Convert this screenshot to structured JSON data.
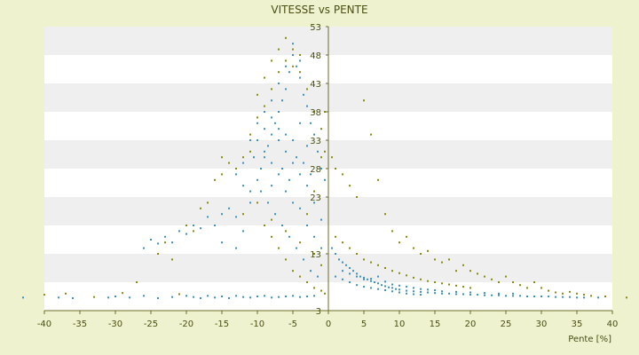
{
  "chart_data": {
    "type": "scatter",
    "title": "VITESSE vs PENTE",
    "xlabel": "Pente [%]",
    "ylabel": "",
    "xlim": [
      -40,
      40
    ],
    "ylim": [
      3,
      53
    ],
    "x_ticks": [
      "-40",
      "-35",
      "-30",
      "-25",
      "-20",
      "-15",
      "-10",
      "-5",
      "0",
      "5",
      "10",
      "15",
      "20",
      "25",
      "30",
      "35",
      "40"
    ],
    "y_ticks": [
      "3",
      "8",
      "13",
      "18",
      "23",
      "28",
      "33",
      "38",
      "43",
      "48",
      "53"
    ],
    "y_ticks_visible": [
      "3",
      "13",
      "23",
      "28",
      "33",
      "38",
      "43",
      "48",
      "53"
    ],
    "grid": "horizontal alternating bands",
    "legend": "none",
    "colors": {
      "background": "#eef2cf",
      "plot_band_light": "#ffffff",
      "plot_band_dark": "#efefef",
      "series_a": "#3a8fd6",
      "series_b": "#8a8a10",
      "axis": "#6b6b2a",
      "text": "#4a4f12"
    },
    "series": [
      {
        "values": [
          [
            -43,
            5.3
          ],
          [
            -38,
            5.3
          ],
          [
            -36,
            5.2
          ],
          [
            -31,
            5.3
          ],
          [
            -30,
            5.5
          ],
          [
            -28,
            5.3
          ],
          [
            -26,
            5.6
          ],
          [
            -24,
            5.2
          ],
          [
            -22,
            5.4
          ],
          [
            -20,
            5.6
          ],
          [
            -19,
            5.4
          ],
          [
            -18,
            5.2
          ],
          [
            -17,
            5.6
          ],
          [
            -16,
            5.3
          ],
          [
            -15,
            5.5
          ],
          [
            -14,
            5.2
          ],
          [
            -13,
            5.6
          ],
          [
            -12,
            5.4
          ],
          [
            -11,
            5.3
          ],
          [
            -10,
            5.5
          ],
          [
            -9,
            5.6
          ],
          [
            -8,
            5.3
          ],
          [
            -7,
            5.4
          ],
          [
            -6,
            5.5
          ],
          [
            -5,
            5.6
          ],
          [
            -4,
            5.4
          ],
          [
            -3,
            5.5
          ],
          [
            -2,
            5.6
          ],
          [
            -26,
            14
          ],
          [
            -25,
            15.5
          ],
          [
            -24,
            14.8
          ],
          [
            -23,
            16
          ],
          [
            -22,
            15
          ],
          [
            -21,
            17
          ],
          [
            -20,
            16.5
          ],
          [
            -19,
            18
          ],
          [
            -18,
            17.5
          ],
          [
            -17,
            19.5
          ],
          [
            -16,
            18
          ],
          [
            -15,
            20
          ],
          [
            -14,
            21
          ],
          [
            -13,
            19.5
          ],
          [
            -15,
            15
          ],
          [
            -13,
            14
          ],
          [
            -12,
            17
          ],
          [
            -11,
            22
          ],
          [
            -12,
            25
          ],
          [
            -11,
            24
          ],
          [
            -10,
            26
          ],
          [
            -9.5,
            28
          ],
          [
            -9,
            30
          ],
          [
            -8.5,
            32
          ],
          [
            -8,
            34
          ],
          [
            -7.5,
            36
          ],
          [
            -7,
            38
          ],
          [
            -6.5,
            40
          ],
          [
            -6,
            42
          ],
          [
            -5.5,
            45
          ],
          [
            -5,
            48
          ],
          [
            -4.5,
            46
          ],
          [
            -4,
            44
          ],
          [
            -3.5,
            41
          ],
          [
            -3,
            39
          ],
          [
            -2.5,
            36
          ],
          [
            -2,
            34
          ],
          [
            -1.5,
            31
          ],
          [
            -1,
            28
          ],
          [
            -0.5,
            26
          ],
          [
            -10,
            33
          ],
          [
            -9,
            35
          ],
          [
            -8,
            37
          ],
          [
            -7,
            33
          ],
          [
            -6,
            31
          ],
          [
            -5,
            29
          ],
          [
            -4,
            27
          ],
          [
            -3,
            25
          ],
          [
            -2,
            22
          ],
          [
            -1,
            19
          ],
          [
            -8,
            25
          ],
          [
            -7,
            27
          ],
          [
            -6,
            24
          ],
          [
            -5,
            22
          ],
          [
            -4,
            21
          ],
          [
            -3,
            18
          ],
          [
            -2,
            16
          ],
          [
            -1,
            14
          ],
          [
            -9,
            31
          ],
          [
            -8,
            29
          ],
          [
            -7,
            35
          ],
          [
            -6,
            34
          ],
          [
            -5,
            33
          ],
          [
            -4,
            36
          ],
          [
            -3,
            32
          ],
          [
            -6.5,
            28
          ],
          [
            -5.5,
            26
          ],
          [
            -4.5,
            30
          ],
          [
            -3.5,
            29
          ],
          [
            -2.5,
            27
          ],
          [
            -10.5,
            30
          ],
          [
            -9.5,
            24
          ],
          [
            -8.5,
            22
          ],
          [
            -7.5,
            20
          ],
          [
            -6.5,
            18
          ],
          [
            -5.5,
            16
          ],
          [
            -4.5,
            14
          ],
          [
            -3.5,
            12
          ],
          [
            -2.5,
            10
          ],
          [
            -1.5,
            9
          ],
          [
            -6,
            46
          ],
          [
            -5,
            50
          ],
          [
            -4,
            47
          ],
          [
            -7,
            43
          ],
          [
            -8,
            40
          ],
          [
            -9,
            38
          ],
          [
            -10,
            36
          ],
          [
            -11,
            33
          ],
          [
            -12,
            29
          ],
          [
            -13,
            27
          ],
          [
            0.5,
            14
          ],
          [
            1,
            13
          ],
          [
            1.5,
            12
          ],
          [
            2,
            11.5
          ],
          [
            2.5,
            11
          ],
          [
            3,
            10.5
          ],
          [
            3.5,
            10
          ],
          [
            4,
            9.5
          ],
          [
            4.5,
            9
          ],
          [
            5,
            8.8
          ],
          [
            5.5,
            8.5
          ],
          [
            6,
            8.2
          ],
          [
            6.5,
            8
          ],
          [
            7,
            7.8
          ],
          [
            7.5,
            7.5
          ],
          [
            8,
            7.3
          ],
          [
            8.5,
            7.1
          ],
          [
            9,
            7
          ],
          [
            9.5,
            6.8
          ],
          [
            10,
            6.7
          ],
          [
            11,
            6.5
          ],
          [
            12,
            6.4
          ],
          [
            13,
            6.3
          ],
          [
            14,
            6.2
          ],
          [
            15,
            6.1
          ],
          [
            16,
            6
          ],
          [
            17,
            6
          ],
          [
            18,
            5.9
          ],
          [
            19,
            5.9
          ],
          [
            20,
            5.8
          ],
          [
            21,
            5.8
          ],
          [
            22,
            5.7
          ],
          [
            23,
            5.7
          ],
          [
            24,
            5.7
          ],
          [
            25,
            5.6
          ],
          [
            26,
            5.6
          ],
          [
            27,
            5.6
          ],
          [
            28,
            5.5
          ],
          [
            29,
            5.5
          ],
          [
            30,
            5.5
          ],
          [
            31,
            5.5
          ],
          [
            32,
            5.4
          ],
          [
            33,
            5.4
          ],
          [
            34,
            5.4
          ],
          [
            35,
            5.3
          ],
          [
            36,
            5.3
          ],
          [
            38,
            5.3
          ],
          [
            1,
            9
          ],
          [
            2,
            8.5
          ],
          [
            3,
            8
          ],
          [
            4,
            7.5
          ],
          [
            5,
            7.2
          ],
          [
            6,
            7
          ],
          [
            7,
            6.8
          ],
          [
            8,
            6.6
          ],
          [
            9,
            6.4
          ],
          [
            10,
            6.2
          ],
          [
            11,
            6
          ],
          [
            12,
            5.9
          ],
          [
            13,
            5.8
          ],
          [
            2,
            10
          ],
          [
            3,
            9.5
          ],
          [
            4,
            9
          ],
          [
            5,
            8.5
          ],
          [
            6,
            8.6
          ],
          [
            7,
            9
          ],
          [
            8,
            8.1
          ],
          [
            9,
            7.6
          ],
          [
            10,
            7.4
          ],
          [
            11,
            7.2
          ],
          [
            12,
            7
          ],
          [
            13,
            6.8
          ],
          [
            14,
            6.7
          ],
          [
            15,
            6.6
          ],
          [
            16,
            6.4
          ],
          [
            18,
            6.3
          ],
          [
            20,
            6.2
          ],
          [
            22,
            6.1
          ],
          [
            24,
            6
          ],
          [
            26,
            6
          ]
        ]
      },
      {
        "values": [
          [
            -40,
            5.8
          ],
          [
            -37,
            6
          ],
          [
            -33,
            5.4
          ],
          [
            -29,
            6.1
          ],
          [
            -21,
            5.9
          ],
          [
            -27,
            8
          ],
          [
            -22,
            12
          ],
          [
            -19,
            17
          ],
          [
            -17,
            22
          ],
          [
            -15,
            27
          ],
          [
            -14,
            29
          ],
          [
            -13,
            28
          ],
          [
            -12,
            30
          ],
          [
            -11,
            34
          ],
          [
            -10,
            41
          ],
          [
            -9,
            44
          ],
          [
            -8,
            42
          ],
          [
            -7,
            45
          ],
          [
            -6,
            47
          ],
          [
            -5,
            49
          ],
          [
            -4,
            45
          ],
          [
            -3,
            42
          ],
          [
            -2,
            38
          ],
          [
            -1,
            35
          ],
          [
            -0.5,
            31
          ],
          [
            -9,
            18
          ],
          [
            -8,
            16
          ],
          [
            -7,
            14
          ],
          [
            -6,
            12
          ],
          [
            -5,
            10
          ],
          [
            -4,
            9
          ],
          [
            -3,
            8
          ],
          [
            -2,
            7
          ],
          [
            -1,
            6.5
          ],
          [
            -0.5,
            6
          ],
          [
            -12,
            20
          ],
          [
            -10,
            22
          ],
          [
            -8,
            19
          ],
          [
            -6,
            17
          ],
          [
            -4,
            15
          ],
          [
            -2,
            13
          ],
          [
            -1,
            11
          ],
          [
            -3,
            20
          ],
          [
            -2,
            24
          ],
          [
            -1,
            30
          ],
          [
            -0.5,
            38
          ],
          [
            0.5,
            30
          ],
          [
            1,
            28
          ],
          [
            2,
            27
          ],
          [
            3,
            25
          ],
          [
            4,
            23
          ],
          [
            5,
            40
          ],
          [
            6,
            34
          ],
          [
            7,
            26
          ],
          [
            8,
            20
          ],
          [
            9,
            17
          ],
          [
            10,
            15
          ],
          [
            11,
            16
          ],
          [
            12,
            14
          ],
          [
            13,
            13
          ],
          [
            14,
            13.5
          ],
          [
            15,
            12
          ],
          [
            16,
            11.5
          ],
          [
            17,
            12
          ],
          [
            18,
            10
          ],
          [
            19,
            11
          ],
          [
            20,
            10
          ],
          [
            21,
            9.5
          ],
          [
            22,
            9
          ],
          [
            23,
            8.5
          ],
          [
            24,
            8
          ],
          [
            25,
            9
          ],
          [
            26,
            8
          ],
          [
            27,
            7.5
          ],
          [
            28,
            7
          ],
          [
            29,
            8
          ],
          [
            30,
            7
          ],
          [
            31,
            6.5
          ],
          [
            32,
            6.2
          ],
          [
            33,
            6
          ],
          [
            34,
            6.3
          ],
          [
            35,
            6
          ],
          [
            36,
            5.8
          ],
          [
            37,
            5.6
          ],
          [
            39,
            5.5
          ],
          [
            42,
            5.3
          ],
          [
            1,
            16
          ],
          [
            2,
            15
          ],
          [
            3,
            14
          ],
          [
            4,
            13
          ],
          [
            5,
            12
          ],
          [
            6,
            11.5
          ],
          [
            7,
            11
          ],
          [
            8,
            10.5
          ],
          [
            9,
            10
          ],
          [
            10,
            9.6
          ],
          [
            11,
            9.2
          ],
          [
            12,
            8.8
          ],
          [
            13,
            8.5
          ],
          [
            14,
            8.2
          ],
          [
            15,
            8
          ],
          [
            16,
            7.8
          ],
          [
            17,
            7.6
          ],
          [
            18,
            7.4
          ],
          [
            19,
            7.2
          ],
          [
            20,
            7
          ],
          [
            -7,
            49
          ],
          [
            -6,
            51
          ],
          [
            -5,
            46
          ],
          [
            -4,
            48
          ],
          [
            -8,
            47
          ],
          [
            -9,
            39
          ],
          [
            -10,
            37
          ],
          [
            -11,
            31
          ],
          [
            -15,
            30
          ],
          [
            -16,
            26
          ],
          [
            -18,
            21
          ],
          [
            -20,
            18
          ],
          [
            -23,
            15
          ],
          [
            -24,
            13
          ]
        ]
      }
    ]
  }
}
